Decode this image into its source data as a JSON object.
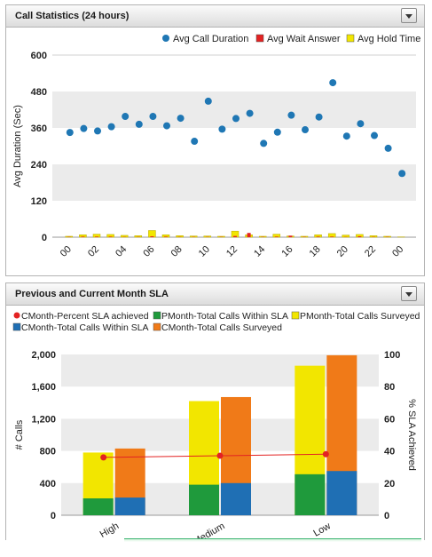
{
  "panel1": {
    "title": "Call Statistics (24 hours)",
    "chart_data": {
      "type": "bar",
      "title": "",
      "xlabel": "",
      "ylabel": "Avg Duration (Sec)",
      "ylim": [
        0,
        600
      ],
      "yticks": [
        "0",
        "120",
        "240",
        "360",
        "480",
        "600"
      ],
      "xtick_labels": [
        "00",
        "02",
        "04",
        "06",
        "08",
        "10",
        "12",
        "14",
        "16",
        "18",
        "20",
        "22",
        "00"
      ],
      "legend_position": "top-right",
      "grid": true,
      "series": [
        {
          "name": "Avg Call Duration",
          "type": "scatter",
          "color": "#1f77b4",
          "values": [
            345,
            358,
            350,
            364,
            398,
            372,
            398,
            367,
            392,
            316,
            448,
            356,
            391,
            408,
            309,
            346,
            402,
            354,
            396,
            509,
            333,
            374,
            335,
            293,
            210
          ]
        },
        {
          "name": "Avg Wait Answer",
          "type": "bar",
          "color": "#e32222",
          "values": [
            1,
            2,
            2,
            2,
            1,
            1,
            3,
            2,
            1,
            1,
            1,
            1,
            4,
            14,
            1,
            2,
            5,
            1,
            2,
            2,
            1,
            3,
            1,
            1,
            0
          ]
        },
        {
          "name": "Avg Hold Time",
          "type": "bar",
          "color": "#f2e600",
          "values": [
            3,
            8,
            10,
            9,
            6,
            5,
            22,
            8,
            5,
            4,
            4,
            3,
            20,
            8,
            3,
            10,
            4,
            3,
            8,
            12,
            7,
            9,
            5,
            3,
            1
          ]
        }
      ]
    }
  },
  "panel2": {
    "title": "Previous and Current Month SLA",
    "chart_data": {
      "type": "bar",
      "title": "",
      "xlabel": "",
      "ylabel": "# Calls",
      "y2label": "% SLA Achieved",
      "ylim": [
        0,
        2000
      ],
      "y2lim": [
        0,
        100
      ],
      "yticks": [
        "0",
        "400",
        "800",
        "1,200",
        "1,600",
        "2,000"
      ],
      "y2ticks": [
        "0",
        "20",
        "40",
        "60",
        "80",
        "100"
      ],
      "categories": [
        "High",
        "Medium",
        "Low"
      ],
      "legend_position": "top",
      "grid": true,
      "series": [
        {
          "name": "CMonth-Percent SLA achieved",
          "type": "line",
          "axis": "right",
          "color": "#e32222",
          "values": [
            36,
            37,
            38
          ]
        },
        {
          "name": "PMonth-Total Calls Within SLA",
          "type": "bar",
          "group": "PMonth",
          "color": "#1f9a3c",
          "values": [
            210,
            380,
            510
          ]
        },
        {
          "name": "PMonth-Total Calls Surveyed",
          "type": "bar",
          "group": "PMonth",
          "color": "#f2e600",
          "values": [
            780,
            1420,
            1860
          ]
        },
        {
          "name": "CMonth-Total Calls Within SLA",
          "type": "bar",
          "group": "CMonth",
          "color": "#1f6fb4",
          "values": [
            220,
            400,
            550
          ]
        },
        {
          "name": "CMonth-Total Calls Surveyed",
          "type": "bar",
          "group": "CMonth",
          "color": "#f07a18",
          "values": [
            830,
            1470,
            1990
          ]
        }
      ]
    }
  }
}
